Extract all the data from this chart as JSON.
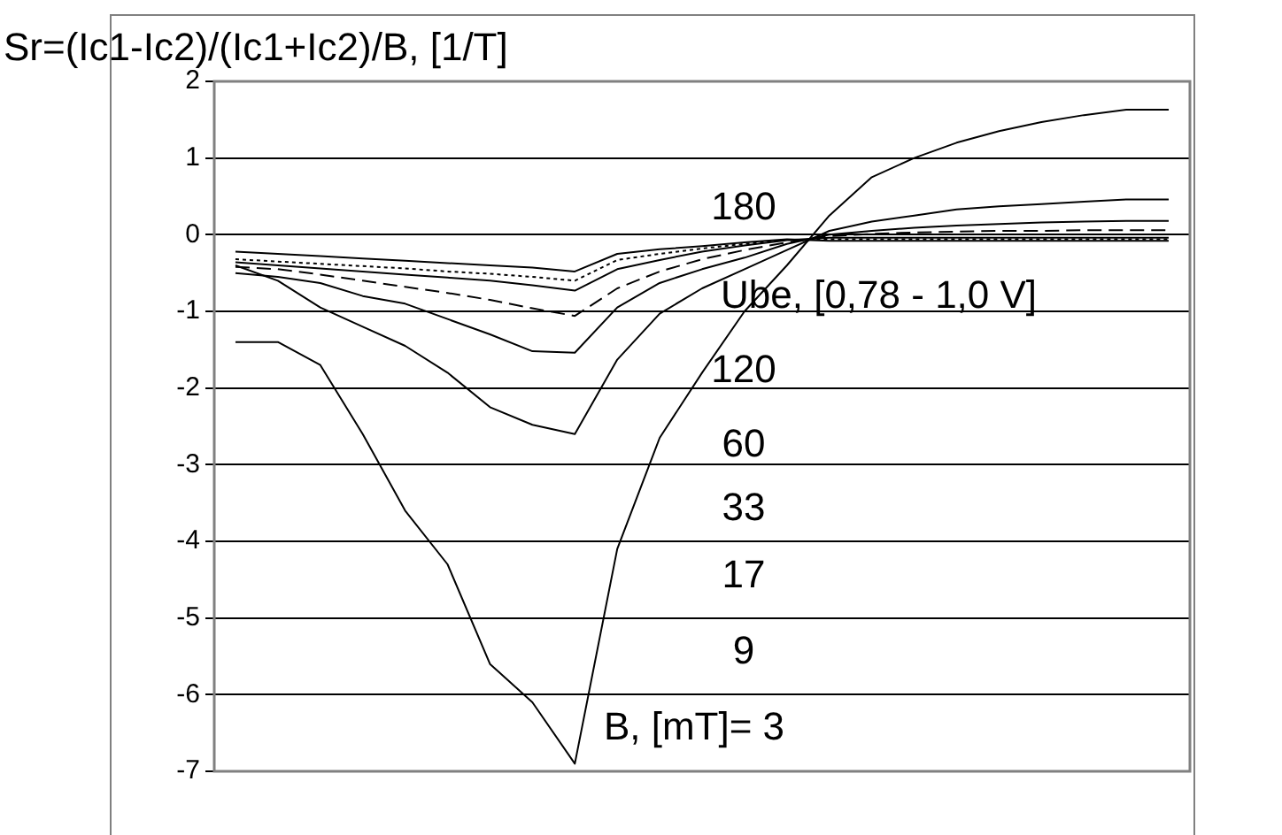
{
  "chart_data": {
    "type": "line",
    "title": "Sr=(Ic1-Ic2)/(Ic1+Ic2)/B, [1/T]",
    "categories": [
      null,
      null,
      null,
      null,
      null,
      null,
      null,
      null,
      null,
      null,
      null,
      null,
      null,
      null,
      null,
      null,
      null,
      null,
      null,
      null,
      null,
      null,
      null
    ],
    "series": [
      {
        "color": "#000000",
        "line_style": "solid",
        "values": [
          -1.4,
          -1.4,
          -1.7,
          -2.6,
          -3.6,
          -4.3,
          -5.6,
          -6.1,
          -6.9,
          -4.1,
          -2.65,
          -1.8,
          -1.0,
          -0.4,
          0.25,
          0.75,
          1.0,
          1.2,
          1.35,
          1.47,
          1.56,
          1.63,
          1.63
        ]
      },
      {
        "color": "#000000",
        "line_style": "solid",
        "values": [
          -0.4,
          -0.6,
          -0.95,
          -1.2,
          -1.45,
          -1.8,
          -2.25,
          -2.48,
          -2.6,
          -1.63,
          -1.03,
          -0.7,
          -0.45,
          -0.2,
          0.05,
          0.17,
          0.25,
          0.33,
          0.37,
          0.4,
          0.43,
          0.46,
          0.46
        ]
      },
      {
        "color": "#000000",
        "line_style": "solid",
        "values": [
          -0.5,
          -0.55,
          -0.63,
          -0.8,
          -0.9,
          -1.1,
          -1.3,
          -1.52,
          -1.54,
          -0.95,
          -0.63,
          -0.45,
          -0.3,
          -0.12,
          0.0,
          0.05,
          0.09,
          0.12,
          0.14,
          0.16,
          0.17,
          0.18,
          0.18
        ]
      },
      {
        "color": "#000000",
        "line_style": "dashed",
        "values": [
          -0.42,
          -0.45,
          -0.52,
          -0.6,
          -0.68,
          -0.76,
          -0.85,
          -0.96,
          -1.06,
          -0.7,
          -0.48,
          -0.32,
          -0.2,
          -0.1,
          -0.02,
          0.01,
          0.03,
          0.04,
          0.05,
          0.05,
          0.06,
          0.06,
          0.06
        ]
      },
      {
        "color": "#000000",
        "line_style": "solid",
        "values": [
          -0.36,
          -0.4,
          -0.44,
          -0.48,
          -0.52,
          -0.56,
          -0.6,
          -0.66,
          -0.73,
          -0.45,
          -0.33,
          -0.22,
          -0.14,
          -0.07,
          -0.04,
          -0.04,
          -0.04,
          -0.04,
          -0.04,
          -0.04,
          -0.04,
          -0.04,
          -0.04
        ]
      },
      {
        "color": "#000000",
        "line_style": "dotted",
        "values": [
          -0.32,
          -0.35,
          -0.38,
          -0.41,
          -0.44,
          -0.48,
          -0.51,
          -0.55,
          -0.6,
          -0.33,
          -0.25,
          -0.18,
          -0.12,
          -0.07,
          -0.06,
          -0.06,
          -0.06,
          -0.06,
          -0.06,
          -0.06,
          -0.06,
          -0.06,
          -0.06
        ]
      },
      {
        "color": "#000000",
        "line_style": "solid",
        "values": [
          -0.22,
          -0.25,
          -0.28,
          -0.31,
          -0.34,
          -0.37,
          -0.4,
          -0.43,
          -0.48,
          -0.25,
          -0.19,
          -0.15,
          -0.1,
          -0.06,
          -0.08,
          -0.08,
          -0.08,
          -0.08,
          -0.08,
          -0.08,
          -0.08,
          -0.08,
          -0.08
        ]
      }
    ],
    "annotations": [
      "180",
      "Ube, [0,78 - 1,0 V]",
      "120",
      "60",
      "33",
      "17",
      "9",
      "B, [mT]= 3"
    ],
    "ylim": [
      -7,
      2
    ],
    "yticks": [
      -7,
      -6,
      -5,
      -4,
      -3,
      -2,
      -1,
      0,
      1,
      2
    ],
    "grid": "y",
    "legend": false,
    "marker": "none"
  }
}
